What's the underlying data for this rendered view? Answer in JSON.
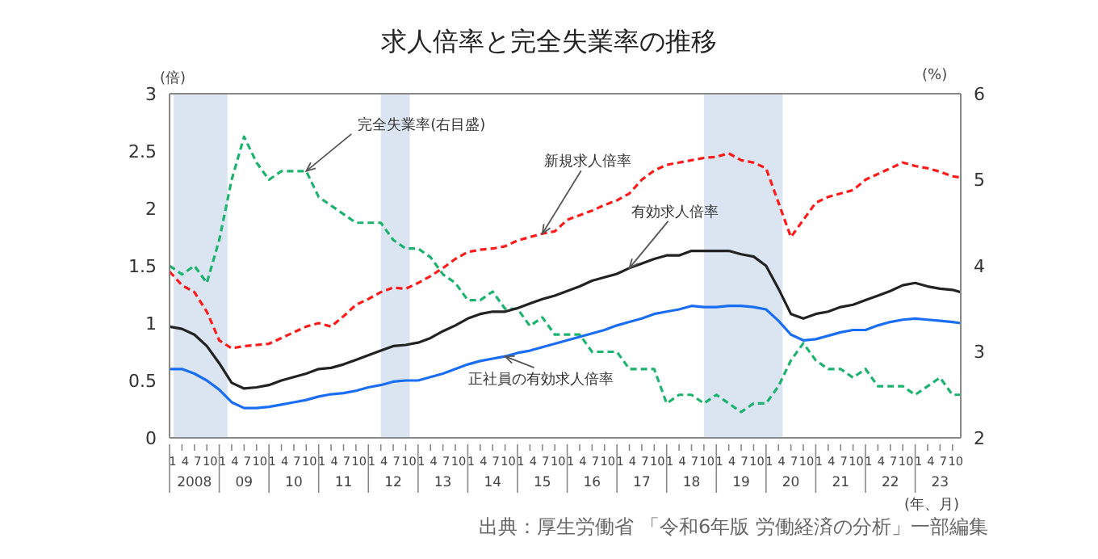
{
  "chart_data": {
    "type": "line",
    "title": "求人倍率と完全失業率の推移",
    "ylabel": "(倍)",
    "y2label": "(%)",
    "xlabel": "(年、月)",
    "annotations": [
      "出典：厚生労働省 「令和6年版 労働経済の分析」一部編集"
    ],
    "x": [
      "2008-01",
      "2008-04",
      "2008-07",
      "2008-10",
      "2009-01",
      "2009-04",
      "2009-07",
      "2009-10",
      "2010-01",
      "2010-04",
      "2010-07",
      "2010-10",
      "2011-01",
      "2011-04",
      "2011-07",
      "2011-10",
      "2012-01",
      "2012-04",
      "2012-07",
      "2012-10",
      "2013-01",
      "2013-04",
      "2013-07",
      "2013-10",
      "2014-01",
      "2014-04",
      "2014-07",
      "2014-10",
      "2015-01",
      "2015-04",
      "2015-07",
      "2015-10",
      "2016-01",
      "2016-04",
      "2016-07",
      "2016-10",
      "2017-01",
      "2017-04",
      "2017-07",
      "2017-10",
      "2018-01",
      "2018-04",
      "2018-07",
      "2018-10",
      "2019-01",
      "2019-04",
      "2019-07",
      "2019-10",
      "2020-01",
      "2020-04",
      "2020-07",
      "2020-10",
      "2021-01",
      "2021-04",
      "2021-07",
      "2021-10",
      "2022-01",
      "2022-04",
      "2022-07",
      "2022-10",
      "2023-01",
      "2023-04",
      "2023-07",
      "2023-10",
      "2023-12"
    ],
    "series": [
      {
        "name": "完全失業率(右目盛)",
        "color": "#1db36f",
        "axis": "y2",
        "line_style": "dashed",
        "values": [
          4.0,
          3.9,
          4.0,
          3.8,
          4.3,
          5.0,
          5.5,
          5.2,
          5.0,
          5.1,
          5.1,
          5.1,
          4.8,
          4.7,
          4.6,
          4.5,
          4.5,
          4.5,
          4.3,
          4.2,
          4.2,
          4.1,
          3.9,
          3.8,
          3.6,
          3.6,
          3.7,
          3.5,
          3.5,
          3.3,
          3.4,
          3.2,
          3.2,
          3.2,
          3.0,
          3.0,
          3.0,
          2.8,
          2.8,
          2.8,
          2.4,
          2.5,
          2.5,
          2.4,
          2.5,
          2.4,
          2.3,
          2.4,
          2.4,
          2.6,
          2.9,
          3.1,
          2.9,
          2.8,
          2.8,
          2.7,
          2.8,
          2.6,
          2.6,
          2.6,
          2.5,
          2.6,
          2.7,
          2.5,
          2.5
        ]
      },
      {
        "name": "新規求人倍率",
        "color": "#ff1a1a",
        "line_style": "dashed",
        "values": [
          1.45,
          1.33,
          1.27,
          1.1,
          0.85,
          0.78,
          0.8,
          0.81,
          0.82,
          0.87,
          0.92,
          0.97,
          1.0,
          0.97,
          1.06,
          1.16,
          1.21,
          1.27,
          1.31,
          1.3,
          1.35,
          1.41,
          1.48,
          1.56,
          1.62,
          1.64,
          1.65,
          1.67,
          1.72,
          1.75,
          1.78,
          1.8,
          1.9,
          1.94,
          1.98,
          2.03,
          2.07,
          2.13,
          2.25,
          2.33,
          2.38,
          2.4,
          2.42,
          2.44,
          2.45,
          2.48,
          2.42,
          2.4,
          2.35,
          2.05,
          1.75,
          1.9,
          2.05,
          2.1,
          2.13,
          2.16,
          2.25,
          2.3,
          2.35,
          2.4,
          2.37,
          2.35,
          2.32,
          2.28,
          2.27
        ]
      },
      {
        "name": "有効求人倍率",
        "color": "#222222",
        "line_style": "solid",
        "values": [
          0.97,
          0.95,
          0.9,
          0.8,
          0.65,
          0.48,
          0.43,
          0.44,
          0.46,
          0.5,
          0.53,
          0.56,
          0.6,
          0.61,
          0.64,
          0.68,
          0.72,
          0.76,
          0.8,
          0.81,
          0.83,
          0.87,
          0.93,
          0.98,
          1.04,
          1.08,
          1.1,
          1.1,
          1.13,
          1.17,
          1.21,
          1.24,
          1.28,
          1.32,
          1.37,
          1.4,
          1.43,
          1.48,
          1.52,
          1.56,
          1.59,
          1.59,
          1.63,
          1.63,
          1.63,
          1.63,
          1.6,
          1.58,
          1.5,
          1.3,
          1.08,
          1.04,
          1.08,
          1.1,
          1.14,
          1.16,
          1.2,
          1.24,
          1.28,
          1.33,
          1.35,
          1.32,
          1.3,
          1.29,
          1.27
        ]
      },
      {
        "name": "正社員の有効求人倍率",
        "color": "#1a6ef5",
        "line_style": "solid",
        "values": [
          0.6,
          0.6,
          0.56,
          0.5,
          0.42,
          0.31,
          0.26,
          0.26,
          0.27,
          0.29,
          0.31,
          0.33,
          0.36,
          0.38,
          0.39,
          0.41,
          0.44,
          0.46,
          0.49,
          0.5,
          0.5,
          0.53,
          0.56,
          0.6,
          0.64,
          0.67,
          0.69,
          0.71,
          0.74,
          0.76,
          0.79,
          0.82,
          0.85,
          0.88,
          0.91,
          0.94,
          0.98,
          1.01,
          1.04,
          1.08,
          1.1,
          1.12,
          1.15,
          1.14,
          1.14,
          1.15,
          1.15,
          1.14,
          1.12,
          1.02,
          0.9,
          0.85,
          0.86,
          0.89,
          0.92,
          0.94,
          0.94,
          0.98,
          1.01,
          1.03,
          1.04,
          1.03,
          1.02,
          1.01,
          1.0
        ]
      }
    ],
    "bands": [
      {
        "axis": "x",
        "from": "2008-02",
        "to": "2009-03",
        "color": "#dbe5f1"
      },
      {
        "axis": "x",
        "from": "2012-04",
        "to": "2012-11",
        "color": "#dbe5f1"
      },
      {
        "axis": "x",
        "from": "2018-10",
        "to": "2020-05",
        "color": "#dbe5f1"
      }
    ],
    "xlim": [
      "2008-01",
      "2023-12"
    ],
    "xticks": [
      {
        "value": "2008-01",
        "label": "1"
      },
      {
        "value": "2008-04",
        "label": "4"
      },
      {
        "value": "2008-07",
        "label": "7"
      },
      {
        "value": "2008-10",
        "label": "10"
      },
      {
        "value": "2009-01",
        "label": "1"
      },
      {
        "value": "2009-04",
        "label": "4"
      },
      {
        "value": "2009-07",
        "label": "7"
      },
      {
        "value": "2009-10",
        "label": "10"
      },
      {
        "value": "2010-01",
        "label": "1"
      },
      {
        "value": "2010-04",
        "label": "4"
      },
      {
        "value": "2010-07",
        "label": "7"
      },
      {
        "value": "2010-10",
        "label": "10"
      },
      {
        "value": "2011-01",
        "label": "1"
      },
      {
        "value": "2011-04",
        "label": "4"
      },
      {
        "value": "2011-07",
        "label": "7"
      },
      {
        "value": "2011-10",
        "label": "10"
      },
      {
        "value": "2012-01",
        "label": "1"
      },
      {
        "value": "2012-04",
        "label": "4"
      },
      {
        "value": "2012-07",
        "label": "7"
      },
      {
        "value": "2012-10",
        "label": "10"
      },
      {
        "value": "2013-01",
        "label": "1"
      },
      {
        "value": "2013-04",
        "label": "4"
      },
      {
        "value": "2013-07",
        "label": "7"
      },
      {
        "value": "2013-10",
        "label": "10"
      },
      {
        "value": "2014-01",
        "label": "1"
      },
      {
        "value": "2014-04",
        "label": "4"
      },
      {
        "value": "2014-07",
        "label": "7"
      },
      {
        "value": "2014-10",
        "label": "10"
      },
      {
        "value": "2015-01",
        "label": "1"
      },
      {
        "value": "2015-04",
        "label": "4"
      },
      {
        "value": "2015-07",
        "label": "7"
      },
      {
        "value": "2015-10",
        "label": "10"
      },
      {
        "value": "2016-01",
        "label": "1"
      },
      {
        "value": "2016-04",
        "label": "4"
      },
      {
        "value": "2016-07",
        "label": "7"
      },
      {
        "value": "2016-10",
        "label": "10"
      },
      {
        "value": "2017-01",
        "label": "1"
      },
      {
        "value": "2017-04",
        "label": "4"
      },
      {
        "value": "2017-07",
        "label": "7"
      },
      {
        "value": "2017-10",
        "label": "10"
      },
      {
        "value": "2018-01",
        "label": "1"
      },
      {
        "value": "2018-04",
        "label": "4"
      },
      {
        "value": "2018-07",
        "label": "7"
      },
      {
        "value": "2018-10",
        "label": "10"
      },
      {
        "value": "2019-01",
        "label": "1"
      },
      {
        "value": "2019-04",
        "label": "4"
      },
      {
        "value": "2019-07",
        "label": "7"
      },
      {
        "value": "2019-10",
        "label": "10"
      },
      {
        "value": "2020-01",
        "label": "1"
      },
      {
        "value": "2020-04",
        "label": "4"
      },
      {
        "value": "2020-07",
        "label": "7"
      },
      {
        "value": "2020-10",
        "label": "10"
      },
      {
        "value": "2021-01",
        "label": "1"
      },
      {
        "value": "2021-04",
        "label": "4"
      },
      {
        "value": "2021-07",
        "label": "7"
      },
      {
        "value": "2021-10",
        "label": "10"
      },
      {
        "value": "2022-01",
        "label": "1"
      },
      {
        "value": "2022-04",
        "label": "4"
      },
      {
        "value": "2022-07",
        "label": "7"
      },
      {
        "value": "2022-10",
        "label": "10"
      },
      {
        "value": "2023-01",
        "label": "1"
      },
      {
        "value": "2023-04",
        "label": "4"
      },
      {
        "value": "2023-07",
        "label": "7"
      },
      {
        "value": "2023-10",
        "label": "10"
      }
    ],
    "x2lim": [
      "2008-01",
      "2023-12"
    ],
    "x2ticks": [
      {
        "value": "2008-07",
        "label": "2008"
      },
      {
        "value": "2009-07",
        "label": "09"
      },
      {
        "value": "2010-07",
        "label": "10"
      },
      {
        "value": "2011-07",
        "label": "11"
      },
      {
        "value": "2012-07",
        "label": "12"
      },
      {
        "value": "2013-07",
        "label": "13"
      },
      {
        "value": "2014-07",
        "label": "14"
      },
      {
        "value": "2015-07",
        "label": "15"
      },
      {
        "value": "2016-07",
        "label": "16"
      },
      {
        "value": "2017-07",
        "label": "17"
      },
      {
        "value": "2018-07",
        "label": "18"
      },
      {
        "value": "2019-07",
        "label": "19"
      },
      {
        "value": "2020-07",
        "label": "20"
      },
      {
        "value": "2021-07",
        "label": "21"
      },
      {
        "value": "2022-07",
        "label": "22"
      },
      {
        "value": "2023-07",
        "label": "23"
      }
    ],
    "ylim": [
      0,
      3
    ],
    "yticks": [
      0,
      0.5,
      1,
      1.5,
      2,
      2.5,
      3
    ],
    "y2lim": [
      2,
      6
    ],
    "y2ticks": [
      2,
      3,
      4,
      5,
      6
    ],
    "grid": false,
    "legend": false,
    "marker": "none"
  }
}
